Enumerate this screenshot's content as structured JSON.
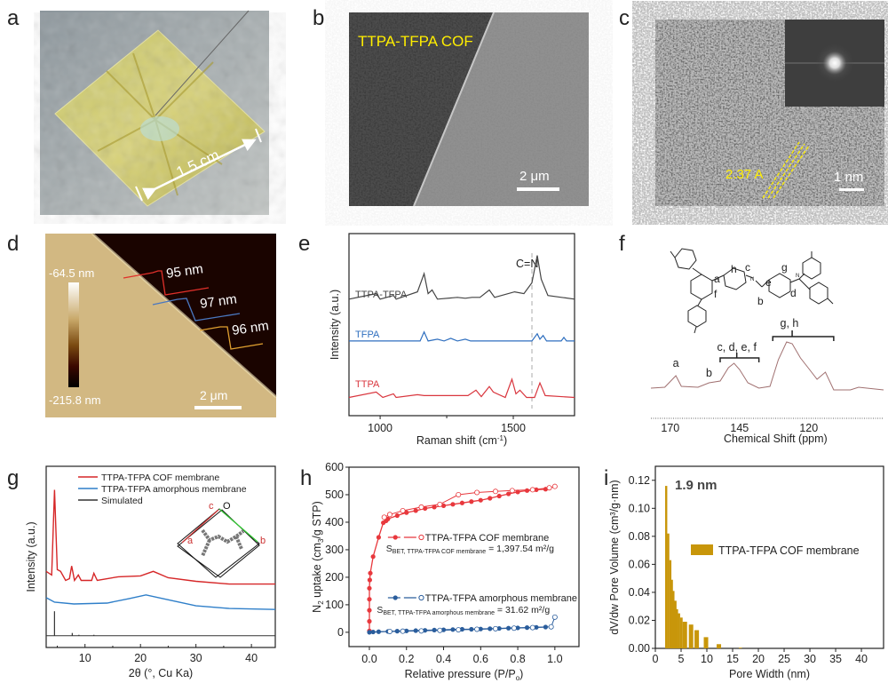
{
  "panel_letters": {
    "a": "a",
    "b": "b",
    "c": "c",
    "d": "d",
    "e": "e",
    "f": "f",
    "g": "g",
    "h": "h",
    "i": "i"
  },
  "panel_a": {
    "scale_label": "1.5 cm"
  },
  "panel_b": {
    "title": "TTPA-TFPA COF",
    "scale_label": "2 μm"
  },
  "panel_c": {
    "spacing_label": "2.37 A",
    "scale_label": "1 nm"
  },
  "panel_d": {
    "colorbar_max": "-64.5 nm",
    "colorbar_min": "-215.8 nm",
    "step_labels": [
      "95 nm",
      "97 nm",
      "96 nm"
    ],
    "scale_label": "2 μm",
    "step_colors": [
      "#e0302a",
      "#4a78c0",
      "#e0a030"
    ]
  },
  "panel_f_structure": {
    "atom_labels": [
      "a",
      "b",
      "c",
      "d",
      "e",
      "f",
      "g",
      "h"
    ],
    "N": "N"
  },
  "chart_data": [
    {
      "panel": "e",
      "type": "line",
      "xlabel": "Raman shift (cm-1)",
      "ylabel": "Intensity (a.u.)",
      "xlim": [
        883,
        1730
      ],
      "ylim": [
        0,
        10
      ],
      "xticks": [
        1000,
        1500
      ],
      "annotation": "C=N",
      "dashed_line_x": 1570,
      "series": [
        {
          "name": "TTPA-TFPA",
          "color": "#444444",
          "points": [
            [
              883,
              6.4
            ],
            [
              985,
              6.7
            ],
            [
              1000,
              6.4
            ],
            [
              1050,
              6.6
            ],
            [
              1060,
              6.4
            ],
            [
              1140,
              6.8
            ],
            [
              1165,
              7.8
            ],
            [
              1180,
              6.7
            ],
            [
              1195,
              6.9
            ],
            [
              1215,
              6.4
            ],
            [
              1290,
              6.5
            ],
            [
              1320,
              6.45
            ],
            [
              1345,
              6.5
            ],
            [
              1375,
              6.5
            ],
            [
              1410,
              6.9
            ],
            [
              1430,
              6.5
            ],
            [
              1505,
              6.8
            ],
            [
              1540,
              6.7
            ],
            [
              1570,
              7.3
            ],
            [
              1590,
              8.8
            ],
            [
              1605,
              7.5
            ],
            [
              1630,
              6.6
            ],
            [
              1730,
              6.4
            ]
          ]
        },
        {
          "name": "TFPA",
          "color": "#2f6fbf",
          "points": [
            [
              883,
              4.1
            ],
            [
              1150,
              4.1
            ],
            [
              1165,
              4.6
            ],
            [
              1180,
              4.1
            ],
            [
              1215,
              4.2
            ],
            [
              1240,
              4.1
            ],
            [
              1265,
              4.25
            ],
            [
              1290,
              4.1
            ],
            [
              1320,
              4.2
            ],
            [
              1340,
              4.1
            ],
            [
              1570,
              4.1
            ],
            [
              1590,
              4.5
            ],
            [
              1600,
              4.2
            ],
            [
              1612,
              4.4
            ],
            [
              1625,
              4.1
            ],
            [
              1680,
              4.1
            ],
            [
              1690,
              4.3
            ],
            [
              1700,
              4.1
            ],
            [
              1730,
              4.1
            ]
          ]
        },
        {
          "name": "TTPA",
          "color": "#d9363e",
          "points": [
            [
              883,
              1.0
            ],
            [
              985,
              1.3
            ],
            [
              1010,
              1.0
            ],
            [
              1050,
              1.2
            ],
            [
              1060,
              1.0
            ],
            [
              1140,
              1.15
            ],
            [
              1165,
              1.1
            ],
            [
              1300,
              1.1
            ],
            [
              1330,
              1.1
            ],
            [
              1360,
              1.4
            ],
            [
              1380,
              1.05
            ],
            [
              1410,
              1.6
            ],
            [
              1425,
              1.3
            ],
            [
              1470,
              1.0
            ],
            [
              1495,
              2.0
            ],
            [
              1510,
              1.2
            ],
            [
              1525,
              1.4
            ],
            [
              1550,
              1.0
            ],
            [
              1580,
              1.0
            ],
            [
              1600,
              1.8
            ],
            [
              1620,
              1.1
            ],
            [
              1730,
              1.0
            ]
          ]
        }
      ]
    },
    {
      "panel": "f",
      "type": "line",
      "xlabel": "Chemical Shift (ppm)",
      "xlim": [
        177,
        93
      ],
      "ylim": [
        0,
        5
      ],
      "xticks": [
        170,
        145,
        120
      ],
      "peak_labels": [
        {
          "text": "a",
          "x": 168
        },
        {
          "text": "b",
          "x": 156
        },
        {
          "text": "c, d, e, f",
          "x": 146
        },
        {
          "text": "g, h",
          "x": 127
        }
      ],
      "series": [
        {
          "color": "#a07070",
          "points": [
            [
              177,
              1.7
            ],
            [
              172,
              1.75
            ],
            [
              168,
              2.4
            ],
            [
              166,
              1.8
            ],
            [
              160,
              1.75
            ],
            [
              156,
              2.0
            ],
            [
              152,
              2.1
            ],
            [
              149,
              2.85
            ],
            [
              147,
              3.1
            ],
            [
              145,
              2.75
            ],
            [
              142,
              2.0
            ],
            [
              138,
              1.7
            ],
            [
              134,
              1.8
            ],
            [
              131,
              3.3
            ],
            [
              128,
              4.3
            ],
            [
              126,
              4.2
            ],
            [
              123,
              3.4
            ],
            [
              120,
              2.8
            ],
            [
              117,
              2.2
            ],
            [
              114,
              2.6
            ],
            [
              111,
              1.6
            ],
            [
              105,
              1.6
            ],
            [
              102,
              1.75
            ],
            [
              93,
              1.6
            ]
          ]
        }
      ]
    },
    {
      "panel": "g",
      "type": "line",
      "xlabel": "2θ (°, Cu Ka)",
      "ylabel": "Intensity (a.u.)",
      "xlim": [
        3,
        44.3
      ],
      "ylim": [
        0,
        10
      ],
      "xticks": [
        10,
        20,
        30,
        40
      ],
      "series": [
        {
          "name": "TTPA-TFPA COF membrane",
          "color": "#d62728",
          "points": [
            [
              3,
              4.2
            ],
            [
              4.0,
              4.0
            ],
            [
              4.5,
              8.7
            ],
            [
              5,
              4.3
            ],
            [
              5.6,
              4.2
            ],
            [
              6.5,
              3.7
            ],
            [
              7.2,
              3.8
            ],
            [
              7.6,
              4.5
            ],
            [
              8.1,
              3.7
            ],
            [
              8.8,
              4.0
            ],
            [
              9.3,
              3.7
            ],
            [
              11.2,
              3.7
            ],
            [
              11.6,
              4.1
            ],
            [
              12.2,
              3.7
            ],
            [
              16,
              3.9
            ],
            [
              20,
              3.95
            ],
            [
              22.3,
              4.2
            ],
            [
              25,
              3.85
            ],
            [
              30,
              3.65
            ],
            [
              36,
              3.5
            ],
            [
              44.3,
              3.5
            ]
          ]
        },
        {
          "name": "TTPA-TFPA amorphous membrane",
          "color": "#2f7fc9",
          "points": [
            [
              3,
              2.75
            ],
            [
              4.5,
              2.5
            ],
            [
              8,
              2.4
            ],
            [
              14,
              2.45
            ],
            [
              18,
              2.7
            ],
            [
              21,
              2.9
            ],
            [
              24,
              2.7
            ],
            [
              30,
              2.3
            ],
            [
              36,
              2.15
            ],
            [
              44.3,
              2.1
            ]
          ]
        },
        {
          "name": "Simulated",
          "color": "#333333",
          "baseline": 0.65,
          "peaks": [
            [
              4.5,
              2.0
            ],
            [
              7.7,
              0.8
            ],
            [
              8.9,
              0.7
            ],
            [
              11.6,
              0.7
            ]
          ]
        }
      ],
      "inset_labels": [
        "c",
        "O",
        "a",
        "b"
      ]
    },
    {
      "panel": "h",
      "type": "scatter",
      "xlabel": "Relative pressure (P/Po)",
      "ylabel": "N2 uptake (cm3/g STP)",
      "xlim": [
        -0.11,
        1.13
      ],
      "ylim": [
        -52,
        600
      ],
      "xticks": [
        0.0,
        0.2,
        0.4,
        0.6,
        0.8,
        1.0
      ],
      "yticks": [
        0,
        100,
        200,
        300,
        400,
        500,
        600
      ],
      "series": [
        {
          "name": "TTPA-TFPA COF membrane",
          "annotation_prefix": "S",
          "annotation_sub": "BET, TTPA-TFPA COF membrane",
          "annotation_value": " = 1,397.54 m²/g",
          "color": "#e8383d",
          "adsorption": [
            [
              0,
              5
            ],
            [
              0,
              40
            ],
            [
              0,
              80
            ],
            [
              0,
              120
            ],
            [
              0,
              160
            ],
            [
              0.002,
              190
            ],
            [
              0.005,
              215
            ],
            [
              0.02,
              275
            ],
            [
              0.05,
              345
            ],
            [
              0.075,
              398
            ],
            [
              0.09,
              405
            ],
            [
              0.1,
              412
            ],
            [
              0.15,
              424
            ],
            [
              0.2,
              435
            ],
            [
              0.25,
              442
            ],
            [
              0.3,
              450
            ],
            [
              0.35,
              455
            ],
            [
              0.4,
              460
            ],
            [
              0.45,
              465
            ],
            [
              0.5,
              470
            ],
            [
              0.55,
              475
            ],
            [
              0.6,
              480
            ],
            [
              0.65,
              487
            ],
            [
              0.7,
              495
            ],
            [
              0.75,
              503
            ],
            [
              0.8,
              510
            ],
            [
              0.85,
              515
            ],
            [
              0.9,
              518
            ],
            [
              0.95,
              520
            ]
          ],
          "desorption": [
            [
              1.0,
              530
            ],
            [
              0.97,
              525
            ],
            [
              0.88,
              518
            ],
            [
              0.77,
              515
            ],
            [
              0.68,
              512
            ],
            [
              0.58,
              508
            ],
            [
              0.48,
              500
            ],
            [
              0.38,
              465
            ],
            [
              0.28,
              455
            ],
            [
              0.18,
              442
            ],
            [
              0.11,
              428
            ],
            [
              0.08,
              418
            ]
          ]
        },
        {
          "name": "TTPA-TFPA amorphous membrane",
          "annotation_prefix": "S",
          "annotation_sub": "BET, TTPA-TFPA amorphous membrane",
          "annotation_value": " = 31.62 m²/g",
          "color": "#2a5d9c",
          "adsorption": [
            [
              0,
              0
            ],
            [
              0.02,
              1
            ],
            [
              0.05,
              2
            ],
            [
              0.1,
              3
            ],
            [
              0.15,
              4
            ],
            [
              0.2,
              5
            ],
            [
              0.25,
              6
            ],
            [
              0.3,
              7
            ],
            [
              0.35,
              8
            ],
            [
              0.4,
              9
            ],
            [
              0.45,
              10
            ],
            [
              0.5,
              11
            ],
            [
              0.55,
              11
            ],
            [
              0.6,
              12
            ],
            [
              0.65,
              13
            ],
            [
              0.7,
              14
            ],
            [
              0.75,
              15
            ],
            [
              0.8,
              16
            ],
            [
              0.85,
              17
            ],
            [
              0.9,
              18
            ],
            [
              0.95,
              19
            ]
          ],
          "desorption": [
            [
              1.0,
              55
            ],
            [
              0.98,
              20
            ],
            [
              0.88,
              17
            ],
            [
              0.78,
              15
            ],
            [
              0.68,
              13
            ],
            [
              0.58,
              11
            ],
            [
              0.48,
              9
            ],
            [
              0.38,
              7
            ],
            [
              0.28,
              5
            ],
            [
              0.18,
              4
            ],
            [
              0.11,
              3
            ]
          ]
        }
      ]
    },
    {
      "panel": "i",
      "type": "bar",
      "xlabel": "Pore Width (nm)",
      "ylabel": "dV/dw Pore Volume (cm³/g·nm)",
      "xlim": [
        0,
        44.3
      ],
      "ylim": [
        0,
        0.13
      ],
      "xticks": [
        0,
        5,
        10,
        15,
        20,
        25,
        30,
        35,
        40
      ],
      "yticks": [
        0.0,
        0.02,
        0.04,
        0.06,
        0.08,
        0.1,
        0.12
      ],
      "annotation": "1.9 nm",
      "series": [
        {
          "name": "TTPA-TFPA COF membrane",
          "color": "#c8960a",
          "points": [
            [
              1.9,
              0.116
            ],
            [
              2.3,
              0.082
            ],
            [
              2.7,
              0.063
            ],
            [
              3.0,
              0.049
            ],
            [
              3.3,
              0.041
            ],
            [
              3.7,
              0.034
            ],
            [
              4.0,
              0.028
            ],
            [
              4.4,
              0.025
            ],
            [
              4.8,
              0.022
            ],
            [
              5.3,
              0.019
            ],
            [
              6.5,
              0.017
            ],
            [
              7.6,
              0.013
            ],
            [
              9.4,
              0.008
            ],
            [
              11.9,
              0.003
            ],
            [
              16.2,
              0.0005
            ]
          ]
        }
      ]
    }
  ]
}
